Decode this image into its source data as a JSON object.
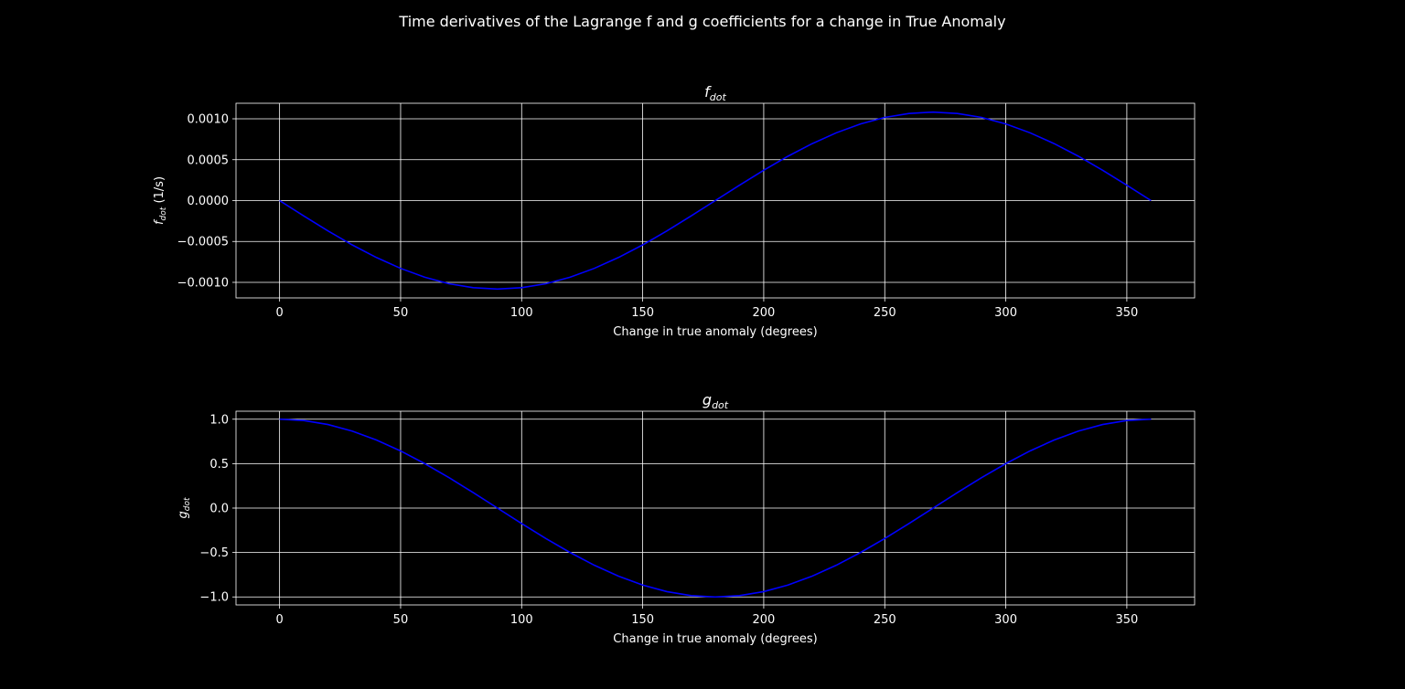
{
  "figure": {
    "suptitle": "Time derivatives of the Lagrange f and g coefficients for a change in True Anomaly",
    "background": "#000000",
    "foreground": "#ffffff",
    "line_color": "#0000ff"
  },
  "chart_data": [
    {
      "type": "line",
      "title": {
        "main": "f",
        "sub": "dot"
      },
      "xlabel": "Change in true anomaly (degrees)",
      "ylabel": {
        "main": "f",
        "sub": "dot",
        "suffix": " (1/s)"
      },
      "xlim": [
        -18,
        378
      ],
      "ylim": [
        -0.00119,
        0.00119
      ],
      "xticks": [
        0,
        50,
        100,
        150,
        200,
        250,
        300,
        350
      ],
      "xtick_labels": [
        "0",
        "50",
        "100",
        "150",
        "200",
        "250",
        "300",
        "350"
      ],
      "yticks": [
        -0.001,
        -0.0005,
        0,
        0.0005,
        0.001
      ],
      "ytick_labels": [
        "−0.0010",
        "−0.0005",
        "0.0000",
        "0.0005",
        "0.0010"
      ],
      "grid": true,
      "series": [
        {
          "color": "#0000ff",
          "x": [
            0,
            10,
            20,
            30,
            40,
            50,
            60,
            70,
            80,
            90,
            100,
            110,
            120,
            130,
            140,
            150,
            160,
            170,
            180,
            190,
            200,
            210,
            220,
            230,
            240,
            250,
            260,
            270,
            280,
            290,
            300,
            310,
            320,
            330,
            340,
            350,
            360
          ],
          "y": [
            0,
            -0.000188,
            -0.000371,
            -0.000542,
            -0.000696,
            -0.000829,
            -0.000937,
            -0.001017,
            -0.001065,
            -0.001082,
            -0.001065,
            -0.001017,
            -0.000937,
            -0.000829,
            -0.000696,
            -0.000542,
            -0.000371,
            -0.000188,
            0,
            0.000188,
            0.000371,
            0.000542,
            0.000696,
            0.000829,
            0.000937,
            0.001017,
            0.001065,
            0.001082,
            0.001065,
            0.001017,
            0.000937,
            0.000829,
            0.000696,
            0.000542,
            0.000371,
            0.000188,
            0
          ]
        }
      ]
    },
    {
      "type": "line",
      "title": {
        "main": "g",
        "sub": "dot"
      },
      "xlabel": "Change in true anomaly (degrees)",
      "ylabel": {
        "main": "g",
        "sub": "dot",
        "suffix": ""
      },
      "xlim": [
        -18,
        378
      ],
      "ylim": [
        -1.09,
        1.09
      ],
      "xticks": [
        0,
        50,
        100,
        150,
        200,
        250,
        300,
        350
      ],
      "xtick_labels": [
        "0",
        "50",
        "100",
        "150",
        "200",
        "250",
        "300",
        "350"
      ],
      "yticks": [
        -1.0,
        -0.5,
        0.0,
        0.5,
        1.0
      ],
      "ytick_labels": [
        "−1.0",
        "−0.5",
        "0.0",
        "0.5",
        "1.0"
      ],
      "grid": true,
      "series": [
        {
          "color": "#0000ff",
          "x": [
            0,
            10,
            20,
            30,
            40,
            50,
            60,
            70,
            80,
            90,
            100,
            110,
            120,
            130,
            140,
            150,
            160,
            170,
            180,
            190,
            200,
            210,
            220,
            230,
            240,
            250,
            260,
            270,
            280,
            290,
            300,
            310,
            320,
            330,
            340,
            350,
            360
          ],
          "y": [
            1.0,
            0.985,
            0.94,
            0.866,
            0.766,
            0.643,
            0.5,
            0.342,
            0.174,
            0.0,
            -0.174,
            -0.342,
            -0.5,
            -0.643,
            -0.766,
            -0.866,
            -0.94,
            -0.985,
            -1.0,
            -0.985,
            -0.94,
            -0.866,
            -0.766,
            -0.643,
            -0.5,
            -0.342,
            -0.174,
            0.0,
            0.174,
            0.342,
            0.5,
            0.643,
            0.766,
            0.866,
            0.94,
            0.985,
            1.0
          ]
        }
      ]
    }
  ]
}
